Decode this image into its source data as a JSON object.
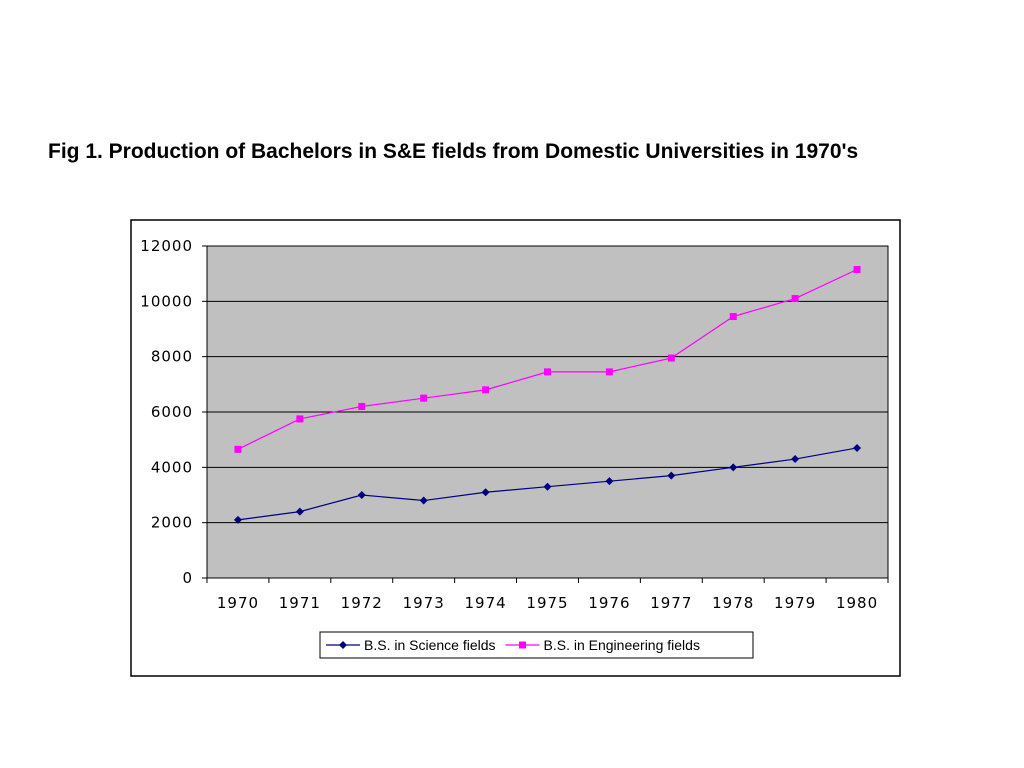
{
  "chart_data": {
    "type": "line",
    "title": "Fig 1. Production of Bachelors in S&E fields from Domestic Universities in 1970's",
    "categories": [
      "1970",
      "1971",
      "1972",
      "1973",
      "1974",
      "1975",
      "1976",
      "1977",
      "1978",
      "1979",
      "1980"
    ],
    "y_ticks": [
      "0",
      "2000",
      "4000",
      "6000",
      "8000",
      "10000",
      "12000"
    ],
    "ylim": [
      0,
      12000
    ],
    "grid": "horizontal",
    "plot_background": "#c0c0c0",
    "legend_position": "bottom",
    "series": [
      {
        "name": "B.S. in Science fields",
        "color": "#000080",
        "marker": "diamond",
        "values": [
          2100,
          2400,
          3000,
          2800,
          3100,
          3300,
          3500,
          3700,
          4000,
          4300,
          4700
        ]
      },
      {
        "name": "B.S. in Engineering fields",
        "color": "#ff00ff",
        "marker": "square",
        "values": [
          4650,
          5750,
          6200,
          6500,
          6800,
          7450,
          7450,
          7950,
          9450,
          10100,
          11150
        ]
      }
    ]
  }
}
